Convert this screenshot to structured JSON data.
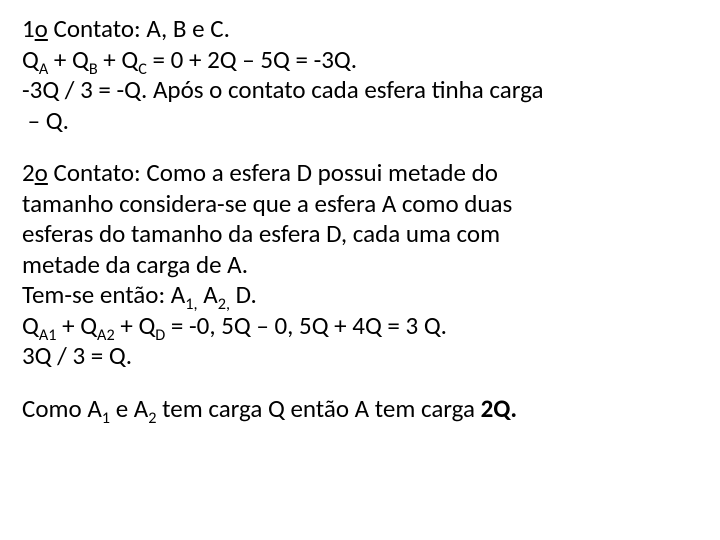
{
  "background_color": "#ffffff",
  "text_color": "#000000",
  "font_family": "Calibri, Segoe UI, Arial, sans-serif",
  "font_size_pt": 19,
  "paragraphs": {
    "p1": {
      "l1_pre": "1",
      "l1_ord": "o",
      "l1_post": " Contato: A, B e C.",
      "l2a": "Q",
      "l2a_sub": "A",
      "l2b": " + Q",
      "l2b_sub": "B",
      "l2c": " + Q",
      "l2c_sub": "C",
      "l2d": " = 0 + 2Q – 5Q = -3Q.",
      "l3": "-3Q / 3 = -Q. Após o contato cada esfera tinha carga",
      "l4": " – Q."
    },
    "p2": {
      "l1_pre": "2",
      "l1_ord": "o",
      "l1_post": " Contato: Como a esfera D possui metade do",
      "l2": "tamanho considera-se que a esfera A como duas",
      "l3": "esferas do tamanho da esfera D, cada uma com",
      "l4": "metade da carga de A.",
      "l5a": "Tem-se então: A",
      "l5a_sub": "1,",
      "l5b": " A",
      "l5b_sub": "2,",
      "l5c": " D.",
      "l6a": "Q",
      "l6a_sub": "A1",
      "l6b": " + Q",
      "l6b_sub": "A2",
      "l6c": " + Q",
      "l6c_sub": "D",
      "l6d": " = -0, 5Q – 0, 5Q + 4Q = 3 Q.",
      "l7": "3Q / 3 = Q."
    },
    "p3": {
      "l1a": "Como A",
      "l1a_sub": "1",
      "l1b": " e A",
      "l1b_sub": "2",
      "l1c": " tem carga Q então A tem carga ",
      "l1d_bold": "2Q."
    }
  }
}
